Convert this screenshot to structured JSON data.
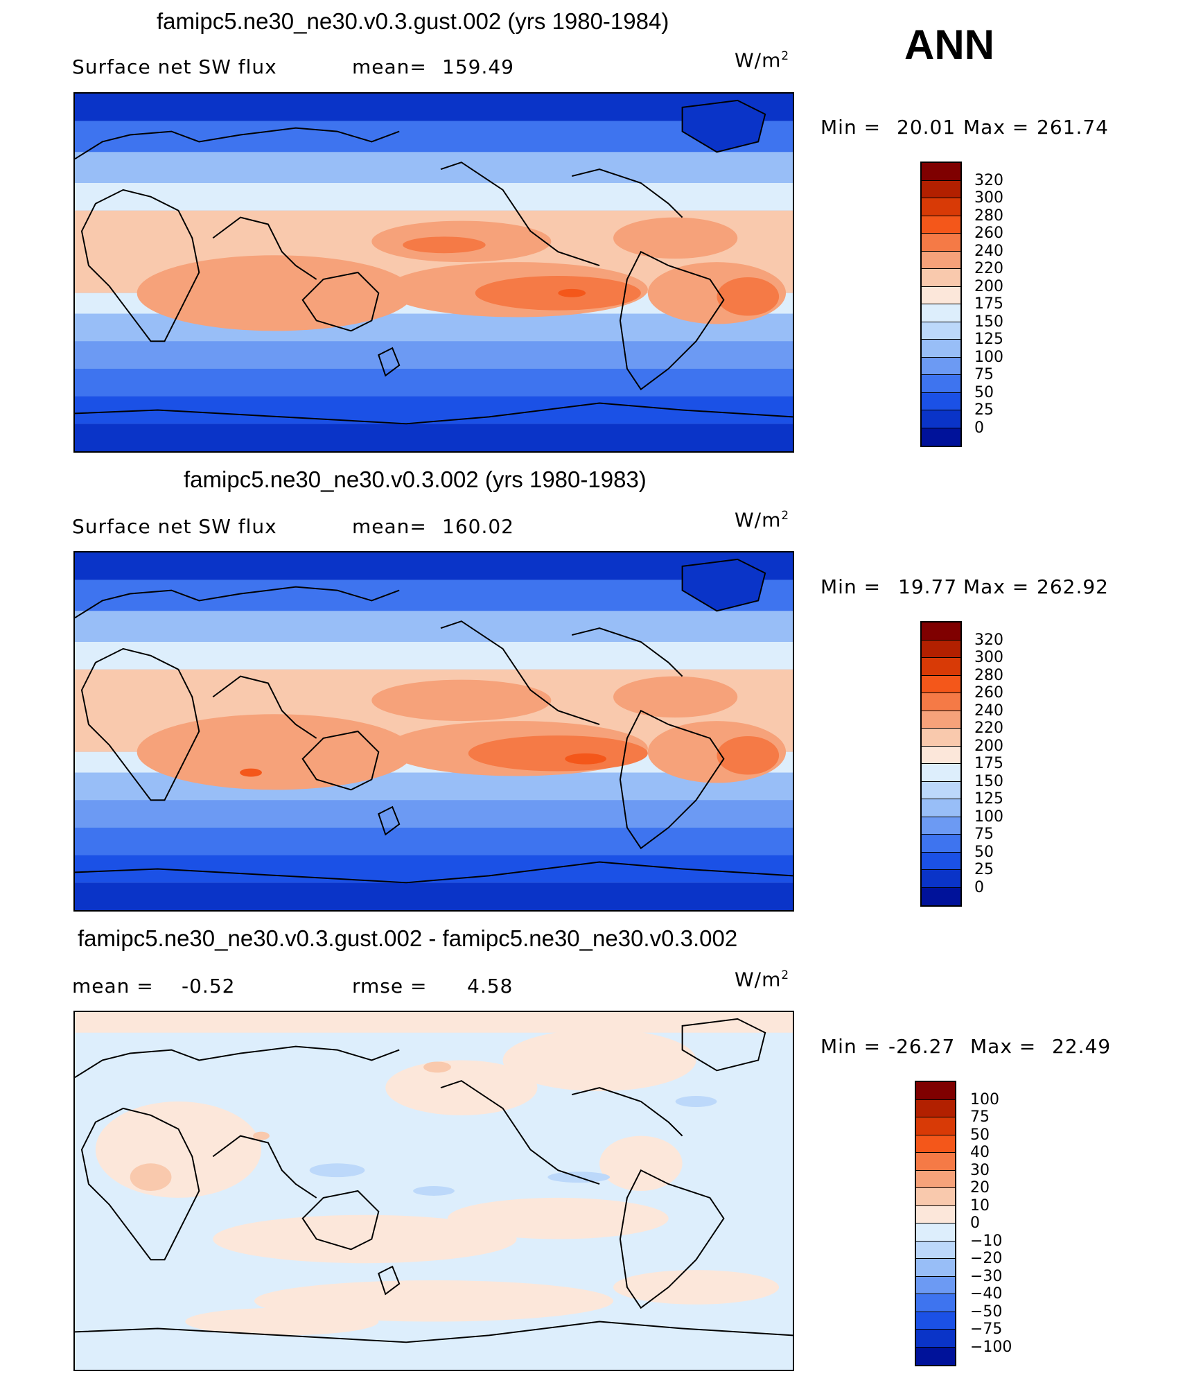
{
  "season": "ANN",
  "units_main": "W/m",
  "units_sup": "2",
  "panels": [
    {
      "title": "famipc5.ne30_ne30.v0.3.gust.002 (yrs 1980-1984)",
      "left_label": "Surface net SW flux",
      "stat_label": "mean=",
      "stat_value": "159.49",
      "min_label": "Min =",
      "min_value": "20.01",
      "max_label": "Max =",
      "max_value": "261.74"
    },
    {
      "title": "famipc5.ne30_ne30.v0.3.002 (yrs 1980-1983)",
      "left_label": "Surface net SW flux",
      "stat_label": "mean=",
      "stat_value": "160.02",
      "min_label": "Min =",
      "min_value": "19.77",
      "max_label": "Max =",
      "max_value": "262.92"
    },
    {
      "title": "famipc5.ne30_ne30.v0.3.gust.002 - famipc5.ne30_ne30.v0.3.002",
      "left_label": "mean =",
      "left_value": "-0.52",
      "stat_label": "rmse =",
      "stat_value": "4.58",
      "min_label": "Min =",
      "min_value": "-26.27",
      "max_label": "Max =",
      "max_value": "22.49"
    }
  ],
  "colorbars": {
    "abs": {
      "labels": [
        "320",
        "300",
        "280",
        "260",
        "240",
        "220",
        "200",
        "175",
        "150",
        "125",
        "100",
        "75",
        "50",
        "25",
        "0"
      ],
      "colors": [
        "#7f0000",
        "#b22000",
        "#d83a06",
        "#f4571a",
        "#f57a46",
        "#f6a27a",
        "#f9c9ad",
        "#fce7da",
        "#ddeefc",
        "#bcd8fa",
        "#98bef7",
        "#6c9af3",
        "#3e74ef",
        "#1b51e6",
        "#0a34c8",
        "#00129a"
      ]
    },
    "diff": {
      "labels": [
        "100",
        "75",
        "50",
        "40",
        "30",
        "20",
        "10",
        "0",
        "-10",
        "-20",
        "-30",
        "-40",
        "-50",
        "-75",
        "-100"
      ],
      "colors": [
        "#7f0000",
        "#b22000",
        "#d83a06",
        "#f4571a",
        "#f57a46",
        "#f6a27a",
        "#f9c9ad",
        "#fce7da",
        "#ddeefc",
        "#bcd8fa",
        "#98bef7",
        "#6c9af3",
        "#3e74ef",
        "#1b51e6",
        "#0a34c8",
        "#00129a"
      ]
    }
  }
}
